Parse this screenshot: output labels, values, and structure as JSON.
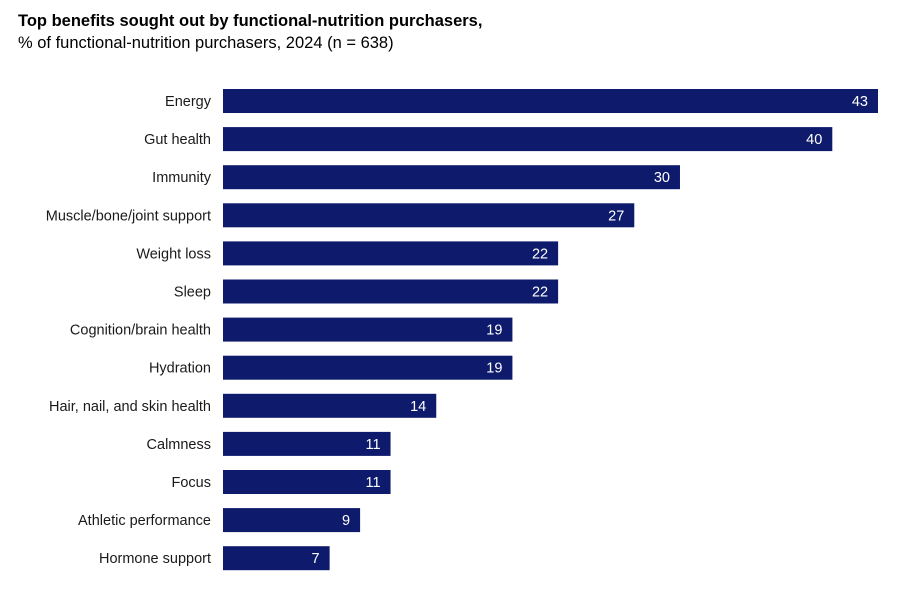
{
  "chart_data": {
    "type": "bar",
    "orientation": "horizontal",
    "title": "Top benefits sought out by functional-nutrition purchasers,",
    "subtitle": "% of functional-nutrition purchasers, 2024 (n = 638)",
    "categories": [
      "Energy",
      "Gut health",
      "Immunity",
      "Muscle/bone/joint support",
      "Weight loss",
      "Sleep",
      "Cognition/brain health",
      "Hydration",
      "Hair, nail, and skin health",
      "Calmness",
      "Focus",
      "Athletic performance",
      "Hormone support"
    ],
    "values": [
      43,
      40,
      30,
      27,
      22,
      22,
      19,
      19,
      14,
      11,
      11,
      9,
      7
    ],
    "value_labels": [
      "43",
      "40",
      "30",
      "27",
      "22",
      "22",
      "19",
      "19",
      "14",
      "11",
      "11",
      "9",
      "7"
    ],
    "bar_color": "#0e1a6b",
    "xlim": [
      0,
      43
    ],
    "grid": false,
    "legend": "none"
  }
}
